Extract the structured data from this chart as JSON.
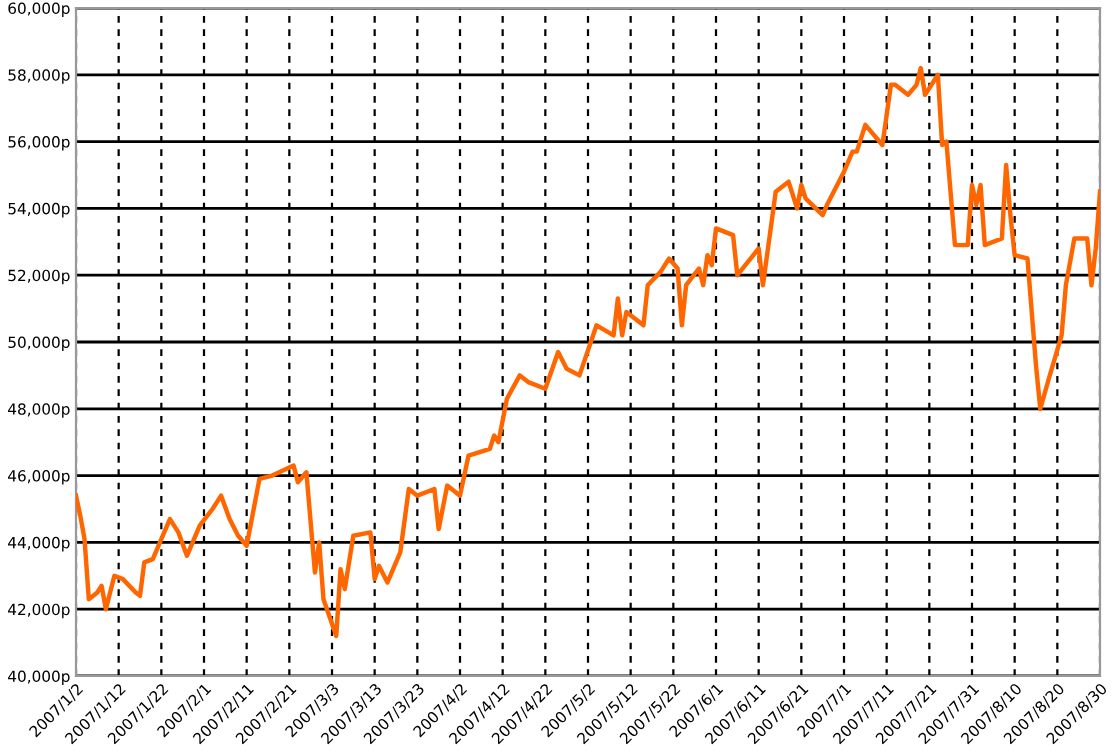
{
  "chart_data": {
    "type": "line",
    "color": "#ff6600",
    "x": [
      "2007-01-02",
      "2007-01-03",
      "2007-01-04",
      "2007-01-05",
      "2007-01-07",
      "2007-01-08",
      "2007-01-09",
      "2007-01-11",
      "2007-01-13",
      "2007-01-16",
      "2007-01-17",
      "2007-01-18",
      "2007-01-20",
      "2007-01-24",
      "2007-01-26",
      "2007-01-28",
      "2007-01-31",
      "2007-02-03",
      "2007-02-05",
      "2007-02-07",
      "2007-02-09",
      "2007-02-11",
      "2007-02-14",
      "2007-02-17",
      "2007-02-22",
      "2007-02-23",
      "2007-02-25",
      "2007-02-27",
      "2007-02-28",
      "2007-03-01",
      "2007-03-04",
      "2007-03-05",
      "2007-03-06",
      "2007-03-08",
      "2007-03-12",
      "2007-03-13",
      "2007-03-14",
      "2007-03-16",
      "2007-03-19",
      "2007-03-21",
      "2007-03-23",
      "2007-03-27",
      "2007-03-28",
      "2007-03-30",
      "2007-04-02",
      "2007-04-04",
      "2007-04-09",
      "2007-04-10",
      "2007-04-11",
      "2007-04-13",
      "2007-04-16",
      "2007-04-18",
      "2007-04-22",
      "2007-04-25",
      "2007-04-27",
      "2007-04-30",
      "2007-05-04",
      "2007-05-08",
      "2007-05-09",
      "2007-05-10",
      "2007-05-11",
      "2007-05-15",
      "2007-05-16",
      "2007-05-19",
      "2007-05-21",
      "2007-05-23",
      "2007-05-24",
      "2007-05-25",
      "2007-05-28",
      "2007-05-29",
      "2007-05-30",
      "2007-05-31",
      "2007-06-01",
      "2007-06-05",
      "2007-06-06",
      "2007-06-11",
      "2007-06-12",
      "2007-06-15",
      "2007-06-18",
      "2007-06-20",
      "2007-06-21",
      "2007-06-22",
      "2007-06-26",
      "2007-06-27",
      "2007-07-01",
      "2007-07-03",
      "2007-07-04",
      "2007-07-06",
      "2007-07-10",
      "2007-07-12",
      "2007-07-13",
      "2007-07-16",
      "2007-07-18",
      "2007-07-19",
      "2007-07-20",
      "2007-07-23",
      "2007-07-24",
      "2007-07-25",
      "2007-07-27",
      "2007-07-30",
      "2007-07-31",
      "2007-08-01",
      "2007-08-02",
      "2007-08-03",
      "2007-08-07",
      "2007-08-08",
      "2007-08-09",
      "2007-08-10",
      "2007-08-13",
      "2007-08-15",
      "2007-08-16",
      "2007-08-18",
      "2007-08-21",
      "2007-08-22",
      "2007-08-24",
      "2007-08-27",
      "2007-08-28",
      "2007-08-29",
      "2007-08-30"
    ],
    "values": [
      45400,
      44800,
      44100,
      42300,
      42500,
      42700,
      42000,
      43000,
      42900,
      42500,
      42400,
      43400,
      43500,
      44700,
      44300,
      43600,
      44500,
      45000,
      45400,
      44700,
      44200,
      43900,
      45900,
      46000,
      46300,
      45800,
      46100,
      43100,
      44000,
      42300,
      41200,
      43200,
      42600,
      44200,
      44300,
      42900,
      43300,
      42800,
      43700,
      45600,
      45400,
      45600,
      44400,
      45700,
      45400,
      46600,
      46800,
      47200,
      47000,
      48300,
      49000,
      48800,
      48600,
      49700,
      49200,
      49000,
      50500,
      50200,
      51300,
      50200,
      50900,
      50500,
      51700,
      52100,
      52500,
      52200,
      50500,
      51700,
      52200,
      51700,
      52600,
      52300,
      53400,
      53200,
      52000,
      52800,
      51700,
      54500,
      54800,
      54000,
      54700,
      54300,
      53800,
      54100,
      55100,
      55700,
      55700,
      56500,
      55900,
      57700,
      57700,
      57400,
      57700,
      58200,
      57400,
      58000,
      55900,
      56000,
      52900,
      52900,
      54700,
      54100,
      54700,
      52900,
      53100,
      55300,
      53800,
      52600,
      52500,
      49300,
      48000,
      48900,
      50200,
      51700,
      53100,
      53100,
      51700,
      52800,
      54500
    ],
    "xlim": [
      "2007-01-02",
      "2007-08-30"
    ],
    "xticks": [
      {
        "value": "2007-01-02",
        "label": "2007/1/2"
      },
      {
        "value": "2007-01-12",
        "label": "2007/1/12"
      },
      {
        "value": "2007-01-22",
        "label": "2007/1/22"
      },
      {
        "value": "2007-02-01",
        "label": "2007/2/1"
      },
      {
        "value": "2007-02-11",
        "label": "2007/2/11"
      },
      {
        "value": "2007-02-21",
        "label": "2007/2/21"
      },
      {
        "value": "2007-03-03",
        "label": "2007/3/3"
      },
      {
        "value": "2007-03-13",
        "label": "2007/3/13"
      },
      {
        "value": "2007-03-23",
        "label": "2007/3/23"
      },
      {
        "value": "2007-04-02",
        "label": "2007/4/2"
      },
      {
        "value": "2007-04-12",
        "label": "2007/4/12"
      },
      {
        "value": "2007-04-22",
        "label": "2007/4/22"
      },
      {
        "value": "2007-05-02",
        "label": "2007/5/2"
      },
      {
        "value": "2007-05-12",
        "label": "2007/5/12"
      },
      {
        "value": "2007-05-22",
        "label": "2007/5/22"
      },
      {
        "value": "2007-06-01",
        "label": "2007/6/1"
      },
      {
        "value": "2007-06-11",
        "label": "2007/6/11"
      },
      {
        "value": "2007-06-21",
        "label": "2007/6/21"
      },
      {
        "value": "2007-07-01",
        "label": "2007/7/1"
      },
      {
        "value": "2007-07-11",
        "label": "2007/7/11"
      },
      {
        "value": "2007-07-21",
        "label": "2007/7/21"
      },
      {
        "value": "2007-07-31",
        "label": "2007/7/31"
      },
      {
        "value": "2007-08-10",
        "label": "2007/8/10"
      },
      {
        "value": "2007-08-20",
        "label": "2007/8/20"
      },
      {
        "value": "2007-08-30",
        "label": "2007/8/30"
      }
    ],
    "ylim": [
      40000,
      60000
    ],
    "yticks": [
      {
        "value": 40000,
        "label": "40,000p"
      },
      {
        "value": 42000,
        "label": "42,000p"
      },
      {
        "value": 44000,
        "label": "44,000p"
      },
      {
        "value": 46000,
        "label": "46,000p"
      },
      {
        "value": 48000,
        "label": "48,000p"
      },
      {
        "value": 50000,
        "label": "50,000p"
      },
      {
        "value": 52000,
        "label": "52,000p"
      },
      {
        "value": 54000,
        "label": "54,000p"
      },
      {
        "value": 56000,
        "label": "56,000p"
      },
      {
        "value": 58000,
        "label": "58,000p"
      },
      {
        "value": 60000,
        "label": "60,000p"
      }
    ],
    "grid": true,
    "line_style": "solid"
  }
}
